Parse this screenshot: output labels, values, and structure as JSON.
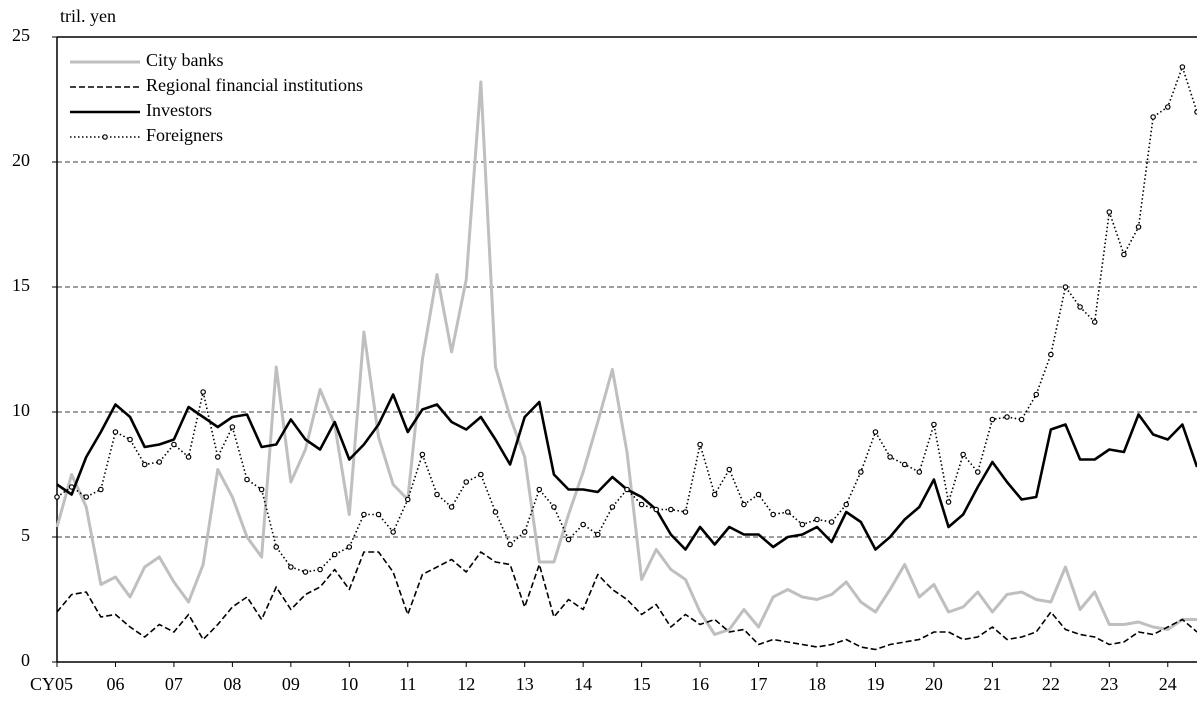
{
  "chart_data": {
    "type": "line",
    "y_label": "tril. yen",
    "x": [
      2005,
      2005.25,
      2005.5,
      2005.75,
      2006,
      2006.25,
      2006.5,
      2006.75,
      2007,
      2007.25,
      2007.5,
      2007.75,
      2008,
      2008.25,
      2008.5,
      2008.75,
      2009,
      2009.25,
      2009.5,
      2009.75,
      2010,
      2010.25,
      2010.5,
      2010.75,
      2011,
      2011.25,
      2011.5,
      2011.75,
      2012,
      2012.25,
      2012.5,
      2012.75,
      2013,
      2013.25,
      2013.5,
      2013.75,
      2014,
      2014.25,
      2014.5,
      2014.75,
      2015,
      2015.25,
      2015.5,
      2015.75,
      2016,
      2016.25,
      2016.5,
      2016.75,
      2017,
      2017.25,
      2017.5,
      2017.75,
      2018,
      2018.25,
      2018.5,
      2018.75,
      2019,
      2019.25,
      2019.5,
      2019.75,
      2020,
      2020.25,
      2020.5,
      2020.75,
      2021,
      2021.25,
      2021.5,
      2021.75,
      2022,
      2022.25,
      2022.5,
      2022.75,
      2023,
      2023.25,
      2023.5,
      2023.75,
      2024,
      2024.25,
      2024.5
    ],
    "series": [
      {
        "name": "City banks",
        "color": "#bfbfbf",
        "line_style": "solid",
        "line_width": 3,
        "values": [
          5.4,
          7.5,
          6.2,
          3.1,
          3.4,
          2.6,
          3.8,
          4.2,
          3.2,
          2.4,
          3.9,
          7.7,
          6.6,
          5.0,
          4.2,
          11.8,
          7.2,
          8.5,
          10.9,
          9.5,
          5.9,
          13.2,
          9.0,
          7.1,
          6.5,
          12.1,
          15.5,
          12.4,
          15.3,
          23.2,
          11.8,
          9.8,
          8.2,
          4.0,
          4.0,
          5.9,
          7.6,
          9.6,
          11.7,
          8.4,
          3.3,
          4.5,
          3.7,
          3.3,
          2.0,
          1.1,
          1.3,
          2.1,
          1.4,
          2.6,
          2.9,
          2.6,
          2.5,
          2.7,
          3.2,
          2.4,
          2.0,
          2.9,
          3.9,
          2.6,
          3.1,
          2.0,
          2.2,
          2.8,
          2.0,
          2.7,
          2.8,
          2.5,
          2.4,
          3.8,
          2.1,
          2.8,
          1.5,
          1.5,
          1.6,
          1.4,
          1.3,
          1.7,
          1.7
        ]
      },
      {
        "name": "Regional financial institutions",
        "color": "#000000",
        "line_style": "dashed",
        "line_width": 1.6,
        "values": [
          2.0,
          2.7,
          2.8,
          1.8,
          1.9,
          1.4,
          1.0,
          1.5,
          1.2,
          1.9,
          0.9,
          1.5,
          2.2,
          2.6,
          1.7,
          3.0,
          2.1,
          2.7,
          3.0,
          3.7,
          2.9,
          4.4,
          4.4,
          3.6,
          1.9,
          3.5,
          3.8,
          4.1,
          3.6,
          4.4,
          4.0,
          3.9,
          2.2,
          3.9,
          1.8,
          2.5,
          2.1,
          3.5,
          2.9,
          2.5,
          1.9,
          2.3,
          1.4,
          1.9,
          1.5,
          1.7,
          1.2,
          1.3,
          0.7,
          0.9,
          0.8,
          0.7,
          0.6,
          0.7,
          0.9,
          0.6,
          0.5,
          0.7,
          0.8,
          0.9,
          1.2,
          1.2,
          0.9,
          1.0,
          1.4,
          0.9,
          1.0,
          1.2,
          2.0,
          1.3,
          1.1,
          1.0,
          0.7,
          0.8,
          1.2,
          1.1,
          1.4,
          1.7,
          1.2
        ]
      },
      {
        "name": "Investors",
        "color": "#000000",
        "line_style": "solid",
        "line_width": 2.6,
        "values": [
          7.1,
          6.7,
          8.2,
          9.2,
          10.3,
          9.8,
          8.6,
          8.7,
          8.9,
          10.2,
          9.8,
          9.4,
          9.8,
          9.9,
          8.6,
          8.7,
          9.7,
          8.9,
          8.5,
          9.6,
          8.1,
          8.7,
          9.5,
          10.7,
          9.2,
          10.1,
          10.3,
          9.6,
          9.3,
          9.8,
          8.9,
          7.9,
          9.8,
          10.4,
          7.5,
          6.9,
          6.9,
          6.8,
          7.4,
          6.9,
          6.6,
          6.1,
          5.1,
          4.5,
          5.4,
          4.7,
          5.4,
          5.1,
          5.1,
          4.6,
          5.0,
          5.1,
          5.4,
          4.8,
          6.0,
          5.6,
          4.5,
          5.0,
          5.7,
          6.2,
          7.3,
          5.4,
          5.9,
          7.0,
          8.0,
          7.2,
          6.5,
          6.6,
          9.3,
          9.5,
          8.1,
          8.1,
          8.5,
          8.4,
          9.9,
          9.1,
          8.9,
          9.5,
          7.8
        ]
      },
      {
        "name": "Foreigners",
        "color": "#000000",
        "line_style": "dotted",
        "line_width": 1.6,
        "marker": "circle",
        "values": [
          6.6,
          7.0,
          6.6,
          6.9,
          9.2,
          8.9,
          7.9,
          8.0,
          8.7,
          8.2,
          10.8,
          8.2,
          9.4,
          7.3,
          6.9,
          4.6,
          3.8,
          3.6,
          3.7,
          4.3,
          4.6,
          5.9,
          5.9,
          5.2,
          6.5,
          8.3,
          6.7,
          6.2,
          7.2,
          7.5,
          6.0,
          4.7,
          5.2,
          6.9,
          6.2,
          4.9,
          5.5,
          5.1,
          6.2,
          6.9,
          6.3,
          6.1,
          6.1,
          6.0,
          8.7,
          6.7,
          7.7,
          6.3,
          6.7,
          5.9,
          6.0,
          5.5,
          5.7,
          5.6,
          6.3,
          7.6,
          9.2,
          8.2,
          7.9,
          7.6,
          9.5,
          6.4,
          8.3,
          7.6,
          9.7,
          9.8,
          9.7,
          10.7,
          12.3,
          15.0,
          14.2,
          13.6,
          18.0,
          16.3,
          17.4,
          21.8,
          22.2,
          23.8,
          22.0
        ]
      }
    ],
    "xlim": [
      2005,
      2024.5
    ],
    "xticks": [
      {
        "value": 2005,
        "label": "CY05"
      },
      {
        "value": 2006,
        "label": "06"
      },
      {
        "value": 2007,
        "label": "07"
      },
      {
        "value": 2008,
        "label": "08"
      },
      {
        "value": 2009,
        "label": "09"
      },
      {
        "value": 2010,
        "label": "10"
      },
      {
        "value": 2011,
        "label": "11"
      },
      {
        "value": 2012,
        "label": "12"
      },
      {
        "value": 2013,
        "label": "13"
      },
      {
        "value": 2014,
        "label": "14"
      },
      {
        "value": 2015,
        "label": "15"
      },
      {
        "value": 2016,
        "label": "16"
      },
      {
        "value": 2017,
        "label": "17"
      },
      {
        "value": 2018,
        "label": "18"
      },
      {
        "value": 2019,
        "label": "19"
      },
      {
        "value": 2020,
        "label": "20"
      },
      {
        "value": 2021,
        "label": "21"
      },
      {
        "value": 2022,
        "label": "22"
      },
      {
        "value": 2023,
        "label": "23"
      },
      {
        "value": 2024,
        "label": "24"
      }
    ],
    "ylim": [
      0,
      25
    ],
    "yticks": [
      0,
      5,
      10,
      15,
      20,
      25
    ],
    "grid": true,
    "legend": "top-left"
  }
}
